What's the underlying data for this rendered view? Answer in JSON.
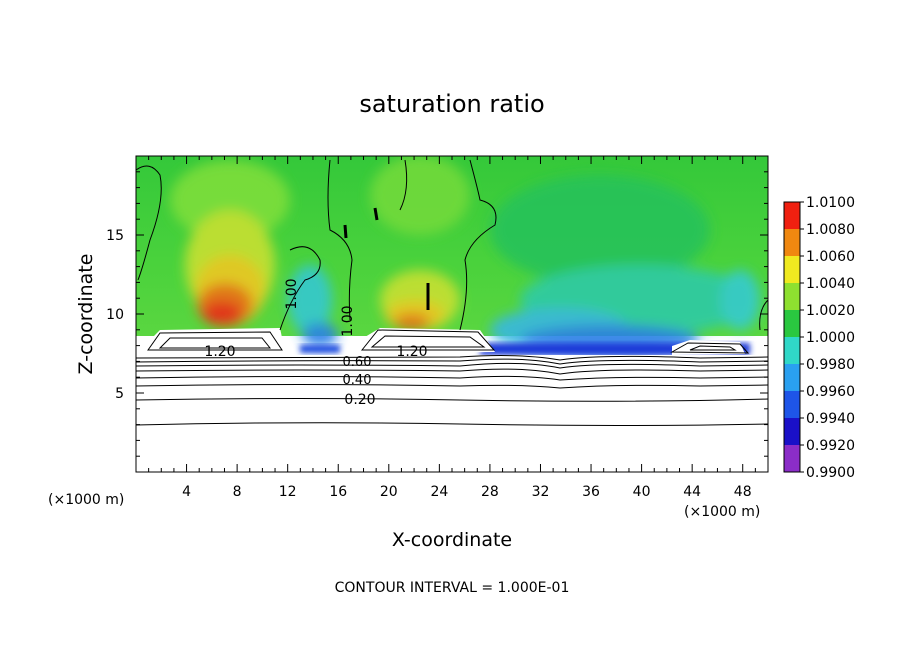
{
  "chart_data": {
    "type": "heatmap",
    "title": "saturation ratio",
    "xlabel": "X-coordinate",
    "ylabel": "Z-coordinate",
    "x_unit_left": "(×1000 m)",
    "x_unit_right": "(×1000 m)",
    "xlim": [
      0,
      50
    ],
    "ylim": [
      0,
      20
    ],
    "x_ticks": [
      "4",
      "8",
      "12",
      "16",
      "20",
      "24",
      "28",
      "32",
      "36",
      "40",
      "44",
      "48"
    ],
    "y_ticks": [
      "5",
      "10",
      "15"
    ],
    "colorbar": {
      "labels": [
        "0.9900",
        "0.9920",
        "0.9940",
        "0.9960",
        "0.9980",
        "1.0000",
        "1.0020",
        "1.0040",
        "1.0060",
        "1.0080",
        "1.0100"
      ],
      "colors": [
        "#8b2dc8",
        "#1a10c8",
        "#1e55e8",
        "#2aa0f0",
        "#30d8c8",
        "#2ac840",
        "#8ee030",
        "#f0ea20",
        "#f08810",
        "#f02010",
        "#f0a0a8"
      ]
    },
    "contour_labels": [
      "1.00",
      "1.00",
      "1.20",
      "1.20",
      "0.60",
      "0.40",
      "0.20"
    ],
    "footer": "CONTOUR INTERVAL = 1.000E-01"
  }
}
